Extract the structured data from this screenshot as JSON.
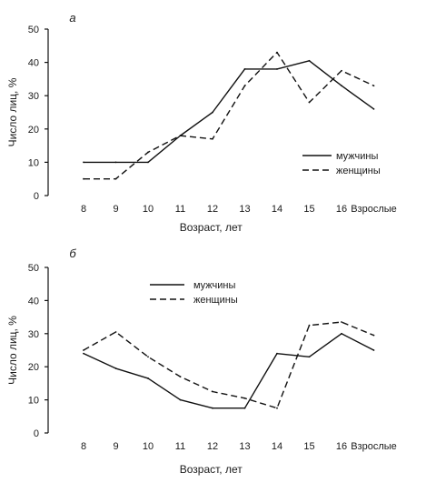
{
  "chart_data": [
    {
      "type": "line",
      "panel_label": "а",
      "xlabel": "Возраст, лет",
      "ylabel": "Число лиц, %",
      "categories": [
        "8",
        "9",
        "10",
        "11",
        "12",
        "13",
        "14",
        "15",
        "16",
        "Взрослые"
      ],
      "ylim": [
        0,
        50
      ],
      "yticks": [
        0,
        10,
        20,
        30,
        40,
        50
      ],
      "grid": false,
      "legend_position": "lower-right",
      "series": [
        {
          "name": "мужчины",
          "style": "solid",
          "values": [
            10,
            10,
            10,
            18,
            25,
            38,
            38,
            40.5,
            33,
            26
          ]
        },
        {
          "name": "женщины",
          "style": "dashed",
          "values": [
            5,
            5,
            13,
            18,
            17,
            33,
            43,
            28,
            37.5,
            33
          ]
        }
      ]
    },
    {
      "type": "line",
      "panel_label": "б",
      "xlabel": "Возраст, лет",
      "ylabel": "Число лиц, %",
      "categories": [
        "8",
        "9",
        "10",
        "11",
        "12",
        "13",
        "14",
        "15",
        "16",
        "Взрослые"
      ],
      "ylim": [
        0,
        50
      ],
      "yticks": [
        0,
        10,
        20,
        30,
        40,
        50
      ],
      "grid": false,
      "legend_position": "upper-center",
      "series": [
        {
          "name": "мужчины",
          "style": "solid",
          "values": [
            24,
            19.5,
            16.5,
            10,
            7.5,
            7.5,
            24,
            23,
            30,
            25
          ]
        },
        {
          "name": "женщины",
          "style": "dashed",
          "values": [
            25,
            30.5,
            23,
            17,
            12.5,
            10.5,
            7.5,
            32.5,
            33.5,
            29.5
          ]
        }
      ]
    }
  ]
}
